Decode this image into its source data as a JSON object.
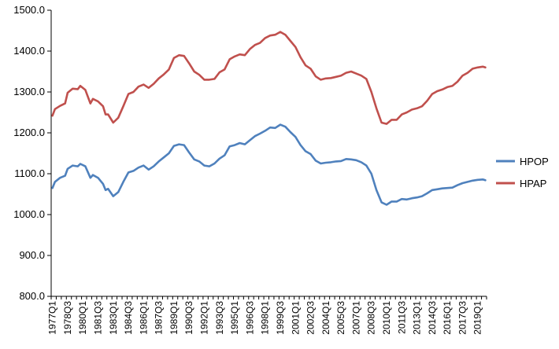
{
  "chart_data": {
    "type": "line",
    "title": "",
    "xlabel": "",
    "ylabel": "",
    "ylim": [
      800,
      1500
    ],
    "yticks": [
      "800.0",
      "900.0",
      "1000.0",
      "1100.0",
      "1200.0",
      "1300.0",
      "1400.0",
      "1500.0"
    ],
    "grid": false,
    "legend_position": "right",
    "x_start": "1977Q1",
    "x_labels": [
      "1977Q1",
      "1978Q3",
      "1980Q1",
      "1981Q3",
      "1983Q1",
      "1984Q3",
      "1986Q1",
      "1987Q3",
      "1989Q1",
      "1990Q3",
      "1992Q1",
      "1993Q3",
      "1995Q1",
      "1996Q3",
      "1998Q1",
      "1999Q3",
      "2001Q1",
      "2002Q3",
      "2004Q1",
      "2005Q3",
      "2007Q1",
      "2008Q3",
      "2010Q1",
      "2011Q3",
      "2013Q1",
      "2014Q3",
      "2016Q1",
      "2017Q3",
      "2019Q1"
    ],
    "series": [
      {
        "name": "HPOP",
        "color": "#4f81bd",
        "key_points": [
          [
            "1977Q1",
            1065
          ],
          [
            "1977Q2",
            1080
          ],
          [
            "1977Q4",
            1090
          ],
          [
            "1978Q2",
            1095
          ],
          [
            "1978Q3",
            1112
          ],
          [
            "1979Q1",
            1120
          ],
          [
            "1979Q3",
            1118
          ],
          [
            "1979Q4",
            1124
          ],
          [
            "1980Q2",
            1118
          ],
          [
            "1980Q4",
            1090
          ],
          [
            "1981Q1",
            1097
          ],
          [
            "1981Q3",
            1090
          ],
          [
            "1982Q1",
            1075
          ],
          [
            "1982Q2",
            1060
          ],
          [
            "1982Q3",
            1063
          ],
          [
            "1983Q1",
            1045
          ],
          [
            "1983Q3",
            1055
          ],
          [
            "1984Q1",
            1080
          ],
          [
            "1984Q3",
            1103
          ],
          [
            "1985Q1",
            1107
          ],
          [
            "1985Q3",
            1115
          ],
          [
            "1986Q1",
            1120
          ],
          [
            "1986Q3",
            1110
          ],
          [
            "1987Q1",
            1118
          ],
          [
            "1987Q3",
            1130
          ],
          [
            "1988Q1",
            1140
          ],
          [
            "1988Q3",
            1150
          ],
          [
            "1989Q1",
            1168
          ],
          [
            "1989Q3",
            1172
          ],
          [
            "1990Q1",
            1170
          ],
          [
            "1990Q3",
            1152
          ],
          [
            "1991Q1",
            1135
          ],
          [
            "1991Q3",
            1130
          ],
          [
            "1992Q1",
            1120
          ],
          [
            "1992Q3",
            1118
          ],
          [
            "1993Q1",
            1125
          ],
          [
            "1993Q3",
            1137
          ],
          [
            "1994Q1",
            1145
          ],
          [
            "1994Q3",
            1167
          ],
          [
            "1995Q1",
            1170
          ],
          [
            "1995Q3",
            1175
          ],
          [
            "1996Q1",
            1172
          ],
          [
            "1996Q3",
            1182
          ],
          [
            "1997Q1",
            1192
          ],
          [
            "1997Q3",
            1198
          ],
          [
            "1998Q1",
            1205
          ],
          [
            "1998Q3",
            1213
          ],
          [
            "1999Q1",
            1212
          ],
          [
            "1999Q3",
            1220
          ],
          [
            "2000Q1",
            1215
          ],
          [
            "2000Q3",
            1202
          ],
          [
            "2001Q1",
            1190
          ],
          [
            "2001Q3",
            1170
          ],
          [
            "2002Q1",
            1155
          ],
          [
            "2002Q3",
            1148
          ],
          [
            "2003Q1",
            1132
          ],
          [
            "2003Q3",
            1125
          ],
          [
            "2004Q1",
            1127
          ],
          [
            "2004Q3",
            1128
          ],
          [
            "2005Q1",
            1130
          ],
          [
            "2005Q3",
            1131
          ],
          [
            "2006Q1",
            1136
          ],
          [
            "2006Q3",
            1135
          ],
          [
            "2007Q1",
            1133
          ],
          [
            "2007Q3",
            1128
          ],
          [
            "2008Q1",
            1120
          ],
          [
            "2008Q3",
            1100
          ],
          [
            "2009Q1",
            1060
          ],
          [
            "2009Q3",
            1030
          ],
          [
            "2010Q1",
            1024
          ],
          [
            "2010Q3",
            1032
          ],
          [
            "2011Q1",
            1032
          ],
          [
            "2011Q3",
            1038
          ],
          [
            "2012Q1",
            1037
          ],
          [
            "2012Q3",
            1040
          ],
          [
            "2013Q1",
            1042
          ],
          [
            "2013Q3",
            1045
          ],
          [
            "2014Q1",
            1052
          ],
          [
            "2014Q3",
            1060
          ],
          [
            "2015Q1",
            1062
          ],
          [
            "2015Q3",
            1064
          ],
          [
            "2016Q1",
            1065
          ],
          [
            "2016Q3",
            1066
          ],
          [
            "2017Q1",
            1072
          ],
          [
            "2017Q3",
            1077
          ],
          [
            "2018Q1",
            1080
          ],
          [
            "2018Q3",
            1083
          ],
          [
            "2019Q1",
            1085
          ],
          [
            "2019Q3",
            1086
          ],
          [
            "2019Q4",
            1084
          ]
        ]
      },
      {
        "name": "HPAP",
        "color": "#c0504d",
        "key_points": [
          [
            "1977Q1",
            1242
          ],
          [
            "1977Q2",
            1258
          ],
          [
            "1977Q4",
            1266
          ],
          [
            "1978Q2",
            1272
          ],
          [
            "1978Q3",
            1298
          ],
          [
            "1979Q1",
            1308
          ],
          [
            "1979Q3",
            1307
          ],
          [
            "1979Q4",
            1315
          ],
          [
            "1980Q2",
            1305
          ],
          [
            "1980Q4",
            1272
          ],
          [
            "1981Q1",
            1283
          ],
          [
            "1981Q3",
            1277
          ],
          [
            "1982Q1",
            1265
          ],
          [
            "1982Q2",
            1245
          ],
          [
            "1982Q3",
            1245
          ],
          [
            "1983Q1",
            1225
          ],
          [
            "1983Q3",
            1237
          ],
          [
            "1984Q1",
            1265
          ],
          [
            "1984Q3",
            1295
          ],
          [
            "1985Q1",
            1300
          ],
          [
            "1985Q3",
            1313
          ],
          [
            "1986Q1",
            1318
          ],
          [
            "1986Q3",
            1310
          ],
          [
            "1987Q1",
            1320
          ],
          [
            "1987Q3",
            1333
          ],
          [
            "1988Q1",
            1343
          ],
          [
            "1988Q3",
            1355
          ],
          [
            "1989Q1",
            1383
          ],
          [
            "1989Q3",
            1390
          ],
          [
            "1990Q1",
            1388
          ],
          [
            "1990Q3",
            1370
          ],
          [
            "1991Q1",
            1350
          ],
          [
            "1991Q3",
            1342
          ],
          [
            "1992Q1",
            1330
          ],
          [
            "1992Q3",
            1330
          ],
          [
            "1993Q1",
            1332
          ],
          [
            "1993Q3",
            1348
          ],
          [
            "1994Q1",
            1355
          ],
          [
            "1994Q3",
            1380
          ],
          [
            "1995Q1",
            1387
          ],
          [
            "1995Q3",
            1392
          ],
          [
            "1996Q1",
            1390
          ],
          [
            "1996Q3",
            1405
          ],
          [
            "1997Q1",
            1415
          ],
          [
            "1997Q3",
            1420
          ],
          [
            "1998Q1",
            1432
          ],
          [
            "1998Q3",
            1438
          ],
          [
            "1999Q1",
            1440
          ],
          [
            "1999Q3",
            1447
          ],
          [
            "2000Q1",
            1440
          ],
          [
            "2000Q3",
            1425
          ],
          [
            "2001Q1",
            1410
          ],
          [
            "2001Q3",
            1385
          ],
          [
            "2002Q1",
            1365
          ],
          [
            "2002Q3",
            1357
          ],
          [
            "2003Q1",
            1338
          ],
          [
            "2003Q3",
            1330
          ],
          [
            "2004Q1",
            1333
          ],
          [
            "2004Q3",
            1334
          ],
          [
            "2005Q1",
            1337
          ],
          [
            "2005Q3",
            1340
          ],
          [
            "2006Q1",
            1347
          ],
          [
            "2006Q3",
            1350
          ],
          [
            "2007Q1",
            1345
          ],
          [
            "2007Q3",
            1340
          ],
          [
            "2008Q1",
            1332
          ],
          [
            "2008Q3",
            1300
          ],
          [
            "2009Q1",
            1260
          ],
          [
            "2009Q3",
            1225
          ],
          [
            "2010Q1",
            1222
          ],
          [
            "2010Q3",
            1232
          ],
          [
            "2011Q1",
            1232
          ],
          [
            "2011Q3",
            1245
          ],
          [
            "2012Q1",
            1250
          ],
          [
            "2012Q3",
            1257
          ],
          [
            "2013Q1",
            1260
          ],
          [
            "2013Q3",
            1265
          ],
          [
            "2014Q1",
            1278
          ],
          [
            "2014Q3",
            1295
          ],
          [
            "2015Q1",
            1302
          ],
          [
            "2015Q3",
            1306
          ],
          [
            "2016Q1",
            1312
          ],
          [
            "2016Q3",
            1315
          ],
          [
            "2017Q1",
            1325
          ],
          [
            "2017Q3",
            1340
          ],
          [
            "2018Q1",
            1347
          ],
          [
            "2018Q3",
            1357
          ],
          [
            "2019Q1",
            1360
          ],
          [
            "2019Q3",
            1362
          ],
          [
            "2019Q4",
            1360
          ]
        ]
      }
    ]
  }
}
